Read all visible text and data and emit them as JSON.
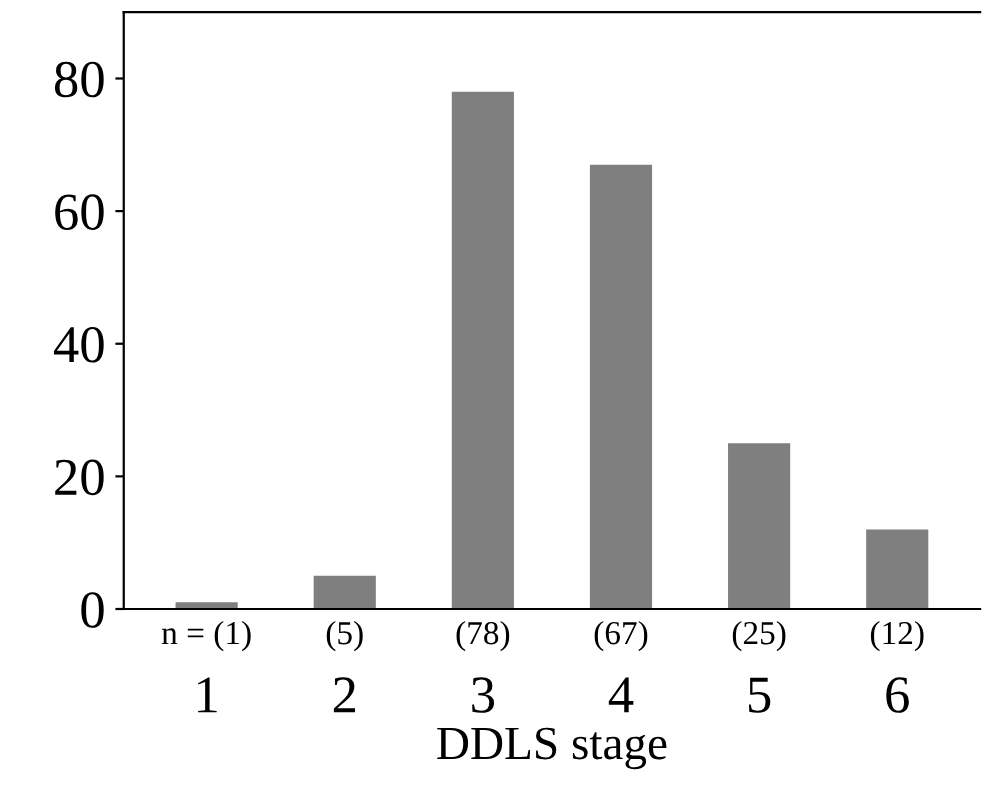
{
  "chart_data": {
    "type": "bar",
    "xlabel": "DDLS stage",
    "categories": [
      "1",
      "2",
      "3",
      "4",
      "5",
      "6"
    ],
    "values": [
      1,
      5,
      78,
      67,
      25,
      12
    ],
    "value_labels": [
      "n = (1)",
      "(5)",
      "(78)",
      "(67)",
      "(25)",
      "(12)"
    ],
    "color": "#7f7f7f",
    "ylim": [
      0,
      90
    ],
    "yticks": [
      0,
      20,
      40,
      60,
      80
    ],
    "grid": false,
    "legend": false
  }
}
